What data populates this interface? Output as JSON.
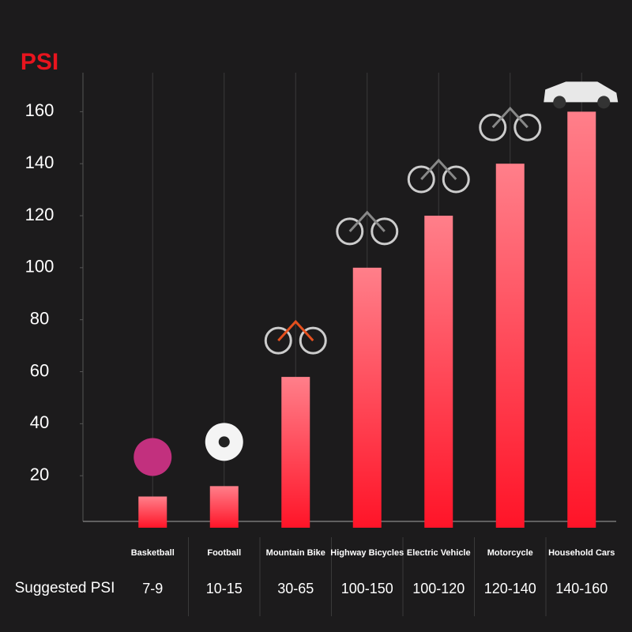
{
  "chart_data": {
    "type": "bar",
    "y_title": "PSI",
    "categories": [
      "Basketball",
      "Football",
      "Mountain Bike",
      "Highway Bicycles",
      "Electric Vehicle",
      "Motorcycle",
      "Household Cars"
    ],
    "values": [
      12,
      16,
      58,
      100,
      120,
      140,
      160
    ],
    "row_label": "Suggested PSI",
    "suggested_psi": [
      "7-9",
      "10-15",
      "30-65",
      "100-150",
      "100-120",
      "120-140",
      "140-160"
    ],
    "color": "#ff1e2d",
    "ylim": [
      0,
      175
    ],
    "yticks": [
      20,
      40,
      60,
      80,
      100,
      120,
      140,
      160
    ],
    "grid": true
  }
}
